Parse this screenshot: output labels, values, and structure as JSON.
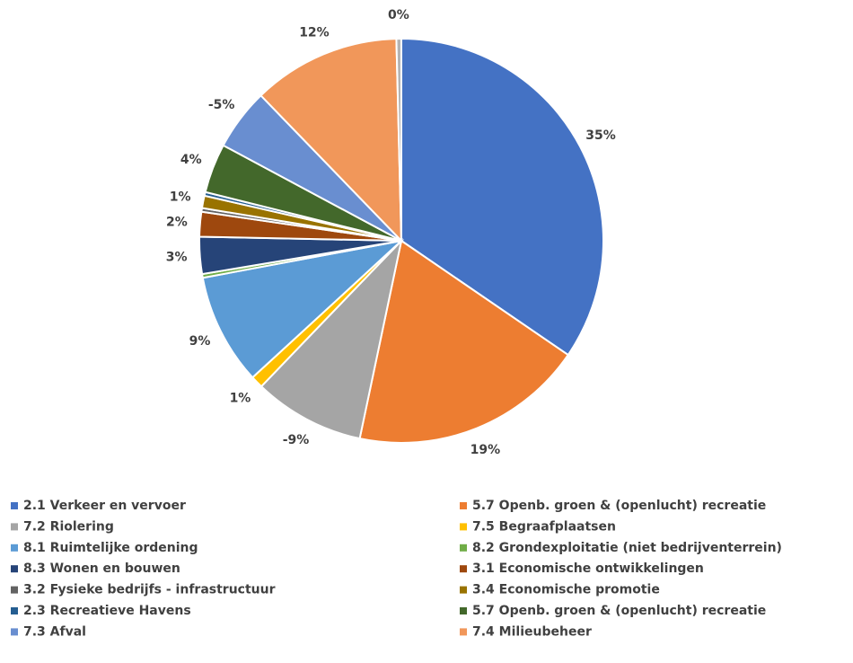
{
  "chart_data": {
    "type": "pie",
    "categories": [
      "2.1 Verkeer en vervoer",
      "5.7 Openb. groen & (openlucht) recreatie",
      "7.2 Riolering",
      "7.5 Begraafplaatsen",
      "8.1 Ruimtelijke ordening",
      "8.2 Grondexploitatie (niet bedrijventerrein)",
      "8.3 Wonen en bouwen",
      "3.1 Economische ontwikkelingen",
      "3.2 Fysieke bedrijfs - infrastructuur",
      "3.4 Economische promotie",
      "2.3 Recreatieve Havens",
      "5.7 Openb. groen & (openlucht) recreatie",
      "7.3 Afval",
      "7.4 Milieubeheer",
      null
    ],
    "values": [
      35,
      19,
      -9,
      1,
      9,
      0.3,
      3,
      2,
      0.3,
      1,
      0.3,
      4,
      -5,
      12,
      0.4
    ],
    "value_labels": [
      "35%",
      "19%",
      "-9%",
      "1%",
      "9%",
      null,
      "3%",
      "2%",
      null,
      "1%",
      null,
      "4%",
      "-5%",
      "12%",
      "0%"
    ],
    "colors": [
      "#4472c4",
      "#ed7d31",
      "#a5a5a5",
      "#ffc000",
      "#5b9bd5",
      "#70ad47",
      "#264478",
      "#9e480e",
      "#636363",
      "#997300",
      "#255e91",
      "#43682b",
      "#698ed0",
      "#f1975a",
      "#b4b4b4"
    ]
  }
}
